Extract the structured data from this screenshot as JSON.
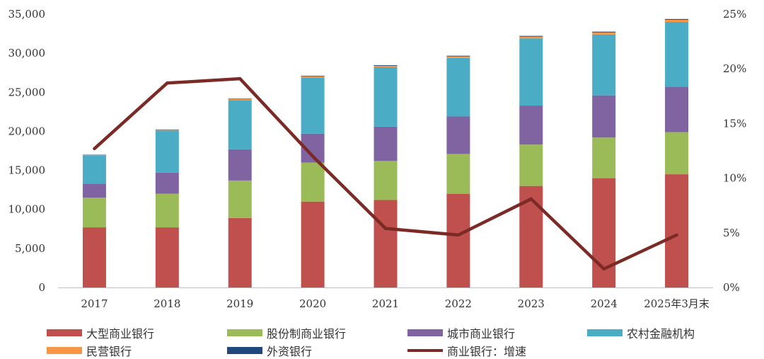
{
  "chart_data": {
    "type": "bar",
    "stacked": true,
    "categories": [
      "2017",
      "2018",
      "2019",
      "2020",
      "2021",
      "2022",
      "2023",
      "2024",
      "2025年3月末"
    ],
    "series": [
      {
        "name": "大型商业银行",
        "color": "#c0504d",
        "values": [
          7700,
          7700,
          8900,
          11000,
          11200,
          12000,
          13000,
          14000,
          14500
        ]
      },
      {
        "name": "股份制商业银行",
        "color": "#9bbb59",
        "values": [
          3800,
          4300,
          4800,
          5000,
          5000,
          5100,
          5300,
          5200,
          5400
        ]
      },
      {
        "name": "城市商业银行",
        "color": "#8064a2",
        "values": [
          1800,
          2700,
          4000,
          3700,
          4400,
          4800,
          5000,
          5400,
          5800
        ]
      },
      {
        "name": "农村金融机构",
        "color": "#4bacc6",
        "values": [
          3600,
          5400,
          6300,
          7200,
          7600,
          7500,
          8600,
          7800,
          8300
        ]
      },
      {
        "name": "民营银行",
        "color": "#f79646",
        "values": [
          50,
          80,
          120,
          150,
          180,
          200,
          230,
          260,
          280
        ]
      },
      {
        "name": "外资银行",
        "color": "#1f497d",
        "values": [
          50,
          50,
          60,
          70,
          80,
          80,
          90,
          100,
          100
        ]
      }
    ],
    "line_series": {
      "name": "商业银行：增速",
      "color": "#7b2a26",
      "values": [
        12.7,
        18.7,
        19.1,
        12.0,
        5.4,
        4.8,
        8.1,
        1.7,
        4.8
      ]
    },
    "ylim": [
      0,
      35000
    ],
    "y_ticks": [
      "0",
      "5,000",
      "10,000",
      "15,000",
      "20,000",
      "25,000",
      "30,000",
      "35,000"
    ],
    "y2lim": [
      0,
      25
    ],
    "y2_ticks": [
      "0%",
      "5%",
      "10%",
      "15%",
      "20%",
      "25%"
    ],
    "grid": false,
    "legend_position": "bottom"
  }
}
